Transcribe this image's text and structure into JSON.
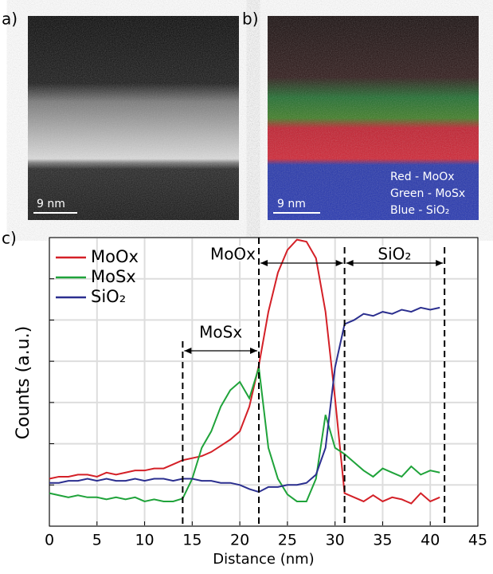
{
  "panels": {
    "a": {
      "label": "a)",
      "scale": "9 nm"
    },
    "b": {
      "label": "b)",
      "scale": "9 nm",
      "key": [
        "Red - MoOx",
        "Green - MoSx",
        "Blue - SiO₂"
      ]
    },
    "c": {
      "label": "c)"
    }
  },
  "chart_data": {
    "type": "line",
    "xlabel": "Distance (nm)",
    "ylabel": "Counts (a.u.)",
    "xlim": [
      0,
      45
    ],
    "xticks": [
      0,
      5,
      10,
      15,
      20,
      25,
      30,
      35,
      40,
      45
    ],
    "ylim": [
      0,
      7
    ],
    "yticks": [
      0,
      1,
      2,
      3,
      4,
      5,
      6,
      7
    ],
    "grid": true,
    "legend": "upper left",
    "x": [
      0,
      1,
      2,
      3,
      4,
      5,
      6,
      7,
      8,
      9,
      10,
      11,
      12,
      13,
      14,
      15,
      16,
      17,
      18,
      19,
      20,
      21,
      22,
      23,
      24,
      25,
      26,
      27,
      28,
      29,
      30,
      31,
      32,
      33,
      34,
      35,
      36,
      37,
      38,
      39,
      40,
      41
    ],
    "series": [
      {
        "name": "MoOx",
        "color": "#d42027",
        "values": [
          1.15,
          1.2,
          1.2,
          1.25,
          1.25,
          1.2,
          1.3,
          1.25,
          1.3,
          1.35,
          1.35,
          1.4,
          1.4,
          1.5,
          1.6,
          1.65,
          1.7,
          1.8,
          1.95,
          2.1,
          2.3,
          2.9,
          3.9,
          5.2,
          6.15,
          6.7,
          6.95,
          6.9,
          6.5,
          5.2,
          3.1,
          0.8,
          0.7,
          0.6,
          0.75,
          0.6,
          0.7,
          0.65,
          0.55,
          0.8,
          0.6,
          0.7
        ]
      },
      {
        "name": "MoSx",
        "color": "#1fa33a",
        "values": [
          0.8,
          0.75,
          0.7,
          0.75,
          0.7,
          0.7,
          0.65,
          0.7,
          0.65,
          0.7,
          0.6,
          0.65,
          0.6,
          0.6,
          0.67,
          1.15,
          1.9,
          2.3,
          2.9,
          3.3,
          3.5,
          3.1,
          3.85,
          1.9,
          1.15,
          0.77,
          0.6,
          0.6,
          1.15,
          2.7,
          1.9,
          1.75,
          1.55,
          1.35,
          1.2,
          1.4,
          1.3,
          1.2,
          1.45,
          1.25,
          1.35,
          1.3
        ]
      },
      {
        "name": "SiO₂",
        "color": "#2b2f8f",
        "values": [
          1.05,
          1.05,
          1.1,
          1.1,
          1.15,
          1.1,
          1.15,
          1.1,
          1.1,
          1.15,
          1.1,
          1.15,
          1.15,
          1.1,
          1.15,
          1.15,
          1.1,
          1.1,
          1.05,
          1.05,
          1.0,
          0.9,
          0.83,
          0.95,
          0.95,
          1.0,
          1.0,
          1.05,
          1.25,
          1.9,
          3.85,
          4.9,
          5.0,
          5.15,
          5.1,
          5.2,
          5.15,
          5.25,
          5.2,
          5.3,
          5.25,
          5.3
        ]
      }
    ],
    "spans": [
      {
        "text": "MoSx",
        "from": 14,
        "to": 22
      },
      {
        "text": "MoOx",
        "from": 22,
        "to": 31
      },
      {
        "text": "SiO₂",
        "from": 31,
        "to": 41.5
      }
    ]
  }
}
